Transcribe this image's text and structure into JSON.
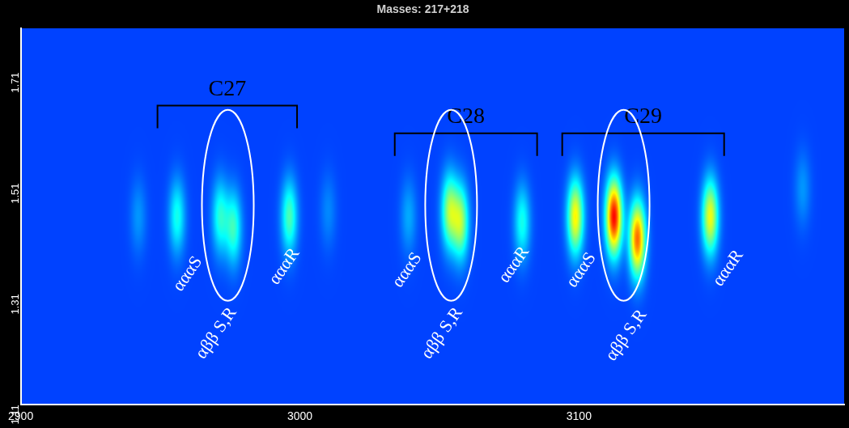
{
  "chart_data": {
    "type": "heatmap",
    "title": "Masses: 217+218",
    "xlim": [
      2900,
      3195
    ],
    "xticks": [
      2900,
      3000,
      3100
    ],
    "ylim": [
      1.11,
      1.79
    ],
    "yticks": [
      1.11,
      1.31,
      1.51,
      1.71
    ],
    "grid": false,
    "peaks": {
      "x": [
        2942,
        2955.9,
        2971.3,
        2976.1,
        2996.1,
        3010,
        3038.8,
        3053.5,
        3057.5,
        3079.5,
        3098.6,
        3112.4,
        3120.8,
        3146.9,
        3180
      ],
      "y": [
        1.45,
        1.45,
        1.45,
        1.43,
        1.45,
        1.46,
        1.45,
        1.46,
        1.44,
        1.44,
        1.45,
        1.45,
        1.41,
        1.45,
        1.5
      ],
      "intensity": [
        0.12,
        0.3,
        0.32,
        0.35,
        0.38,
        0.1,
        0.15,
        0.5,
        0.5,
        0.3,
        0.65,
        1.0,
        0.85,
        0.62,
        0.12
      ]
    },
    "annotations": {
      "groups": [
        {
          "text": "C27",
          "x": [
            2949,
            2999
          ],
          "y": 1.65
        },
        {
          "text": "C28",
          "x": [
            3034,
            3085
          ],
          "y": 1.6
        },
        {
          "text": "C29",
          "x": [
            3094,
            3152
          ],
          "y": 1.6
        }
      ],
      "ellipses": [
        {
          "x": 2974.2,
          "y": 1.47
        },
        {
          "x": 3054.2,
          "y": 1.47
        },
        {
          "x": 3116.0,
          "y": 1.47
        }
      ],
      "labels": [
        {
          "text": "αααS",
          "x": 2963.8,
          "y": 1.374
        },
        {
          "text": "αββ S,R",
          "x": 2976.1,
          "y": 1.282
        },
        {
          "text": "αααR",
          "x": 2998.6,
          "y": 1.389
        },
        {
          "text": "αααS",
          "x": 3042.4,
          "y": 1.381
        },
        {
          "text": "αββ S,R",
          "x": 3057.0,
          "y": 1.282
        },
        {
          "text": "αααR",
          "x": 3080.9,
          "y": 1.392
        },
        {
          "text": "αααS",
          "x": 3104.8,
          "y": 1.381
        },
        {
          "text": "αββ S,R",
          "x": 3123.0,
          "y": 1.278
        },
        {
          "text": "αααR",
          "x": 3157.6,
          "y": 1.386
        }
      ]
    }
  }
}
